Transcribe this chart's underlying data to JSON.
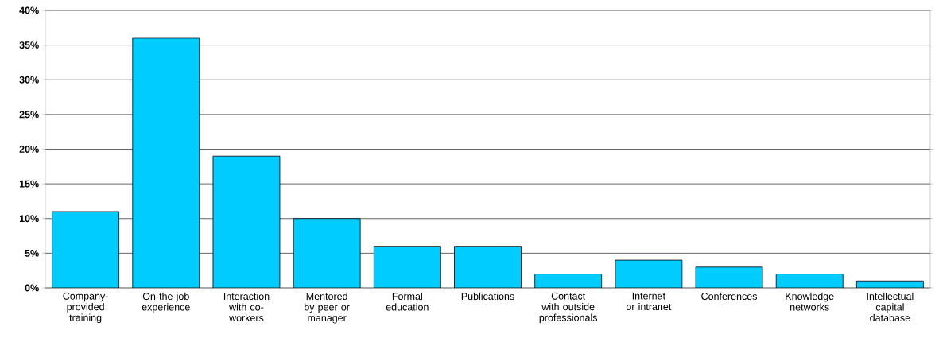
{
  "chart_data": {
    "type": "bar",
    "categories": [
      "Company-provided training",
      "On-the-job experience",
      "Interaction with co-workers",
      "Mentored by peer or manager",
      "Formal education",
      "Publications",
      "Contact with outside professionals",
      "Internet or intranet",
      "Conferences",
      "Knowledge networks",
      "Intellectual capital database"
    ],
    "values": [
      11,
      36,
      19,
      10,
      6,
      6,
      2,
      4,
      3,
      2,
      1
    ],
    "color": "#00ccff",
    "ylim": [
      0,
      40
    ],
    "yticks": [
      {
        "value": 0,
        "label": "0%"
      },
      {
        "value": 5,
        "label": "5%"
      },
      {
        "value": 10,
        "label": "10%"
      },
      {
        "value": 15,
        "label": "15%"
      },
      {
        "value": 20,
        "label": "20%"
      },
      {
        "value": 25,
        "label": "25%"
      },
      {
        "value": 30,
        "label": "30%"
      },
      {
        "value": 35,
        "label": "35%"
      },
      {
        "value": 40,
        "label": "40%"
      }
    ],
    "grid": "y"
  }
}
